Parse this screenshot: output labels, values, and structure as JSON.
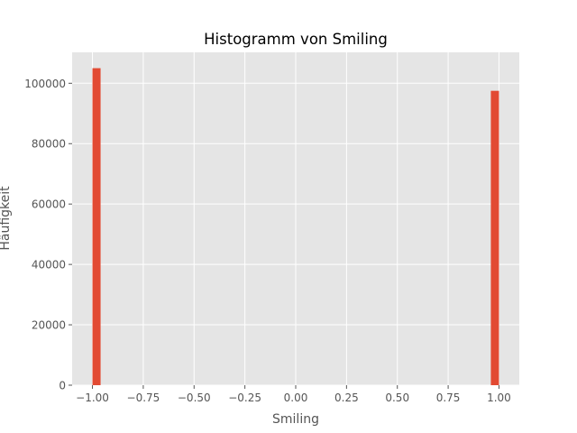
{
  "chart_data": {
    "type": "bar",
    "title": "Histogramm von Smiling",
    "xlabel": "Smiling",
    "ylabel": "Häufigkeit",
    "xlim": [
      -1.1,
      1.1
    ],
    "ylim": [
      0,
      110250
    ],
    "xticks": [
      -1.0,
      -0.75,
      -0.5,
      -0.25,
      0.0,
      0.25,
      0.5,
      0.75,
      1.0
    ],
    "xtick_labels": [
      "−1.00",
      "−0.75",
      "−0.50",
      "−0.25",
      "0.00",
      "0.25",
      "0.50",
      "0.75",
      "1.00"
    ],
    "yticks": [
      0,
      20000,
      40000,
      60000,
      80000,
      100000
    ],
    "ytick_labels": [
      "0",
      "20000",
      "40000",
      "60000",
      "80000",
      "100000"
    ],
    "bins": [
      {
        "x0": -1.0,
        "x1": -0.96,
        "count": 105000
      },
      {
        "x0": 0.96,
        "x1": 1.0,
        "count": 97500
      }
    ],
    "grid": true,
    "colors": {
      "bar": "#E24A33",
      "plot_bg": "#E5E5E5",
      "grid": "#FFFFFF",
      "text": "#555555",
      "title": "#000000"
    }
  }
}
